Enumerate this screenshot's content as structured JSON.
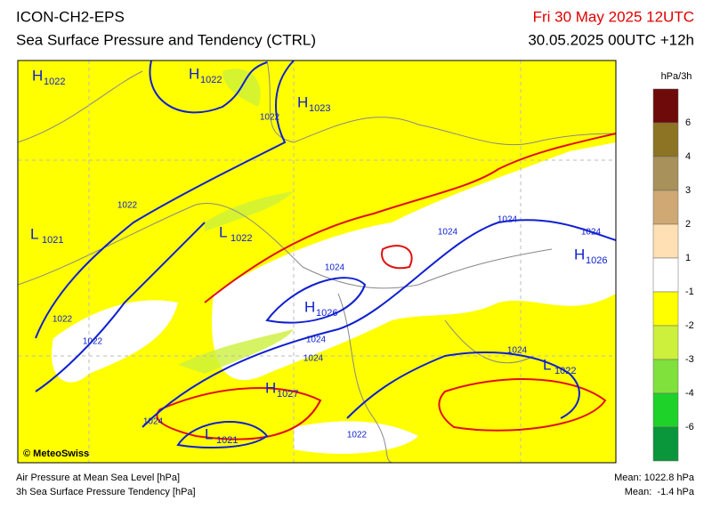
{
  "header": {
    "model": "ICON-CH2-EPS",
    "title": "Sea Surface Pressure and Tendency (CTRL)",
    "valid_time": "Fri 30 May 2025 12UTC",
    "run": "30.05.2025 00UTC +12h"
  },
  "pressure_centers": [
    {
      "letter": "H",
      "value": "1022"
    },
    {
      "letter": "H",
      "value": "1022"
    },
    {
      "letter": "H",
      "value": "1023"
    },
    {
      "letter": "L",
      "value": "1021"
    },
    {
      "letter": "L",
      "value": "1022"
    },
    {
      "letter": "H",
      "value": "1026"
    },
    {
      "letter": "H",
      "value": "1026"
    },
    {
      "letter": "H",
      "value": "1027"
    },
    {
      "letter": "L",
      "value": "1021"
    },
    {
      "letter": "L",
      "value": "1022"
    }
  ],
  "isobar_labels": [
    "1022",
    "1022",
    "1022",
    "1022",
    "1024",
    "1024",
    "1024",
    "1024",
    "1024",
    "1024",
    "1024",
    "1024",
    "1022"
  ],
  "colorbar": {
    "unit": "hPa/3h",
    "labels": [
      "6",
      "4",
      "3",
      "2",
      "1",
      "-1",
      "-2",
      "-3",
      "-4",
      "-6"
    ],
    "colors": [
      "#6e0a0a",
      "#8c7424",
      "#a8915a",
      "#cfa874",
      "#ffe0b4",
      "#ffffff",
      "#ffff00",
      "#ccf03c",
      "#80e03c",
      "#1ed22a",
      "#0a963a"
    ]
  },
  "footer": {
    "copyright": "© MeteoSwiss",
    "layer1": "Air Pressure at Mean Sea Level [hPa]",
    "layer2": "3h Sea Surface Pressure Tendency [hPa]",
    "mean1": "Mean: 1022.8 hPa",
    "mean2": "Mean:  -1.4 hPa"
  }
}
